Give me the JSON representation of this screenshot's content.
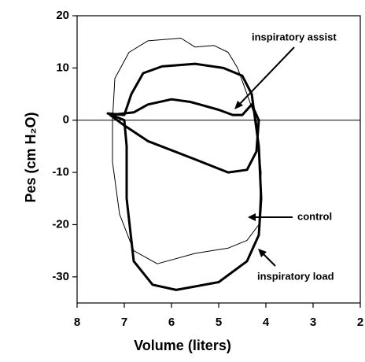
{
  "chart_data": {
    "type": "line",
    "x_label": "Volume (liters)",
    "y_label": "Pes  (cm H₂O)",
    "xlim": [
      8,
      2
    ],
    "xticks": [
      8,
      7,
      6,
      5,
      4,
      3,
      2
    ],
    "ylim": [
      -35,
      20
    ],
    "yticks": [
      -30,
      -20,
      -10,
      0,
      10,
      20
    ],
    "hline": 0,
    "series": [
      {
        "name": "control",
        "color": "#000000",
        "line_width": 1,
        "x": [
          7.25,
          7.2,
          6.9,
          6.5,
          5.8,
          5.5,
          5.1,
          4.8,
          4.6,
          4.2,
          4.1,
          4.15,
          4.4,
          4.8,
          5.5,
          6.3,
          6.8,
          7.1,
          7.25
        ],
        "values": [
          0,
          8,
          13,
          15.2,
          15.7,
          14,
          14.3,
          13,
          10,
          0,
          -10,
          -20,
          -23,
          -24.5,
          -25.5,
          -27.5,
          -25,
          -18,
          -8
        ]
      },
      {
        "name": "inspiratory load",
        "color": "#000000",
        "line_width": 3,
        "x": [
          7.35,
          7.0,
          6.85,
          6.6,
          6.2,
          5.5,
          4.9,
          4.5,
          4.3,
          4.15,
          4.1,
          4.15,
          4.4,
          5.0,
          5.9,
          6.4,
          6.8,
          6.95,
          6.95,
          7.0
        ],
        "values": [
          1.3,
          1,
          5,
          9,
          10.3,
          10.8,
          10,
          8.5,
          5,
          -5,
          -15,
          -22,
          -27,
          -31,
          -32.5,
          -31.5,
          -27,
          -15,
          -5,
          0
        ]
      },
      {
        "name": "inspiratory assist",
        "color": "#000000",
        "line_width": 3,
        "x": [
          7.3,
          7.0,
          6.5,
          5.5,
          4.8,
          4.4,
          4.2,
          4.15,
          4.3,
          4.5,
          4.7,
          5.0,
          5.6,
          6.0,
          6.5,
          6.8
        ],
        "values": [
          1,
          -1,
          -4,
          -7.5,
          -10,
          -9.5,
          -6,
          0,
          3,
          1,
          1,
          2,
          3.5,
          4,
          3,
          1.5
        ]
      }
    ]
  }
}
